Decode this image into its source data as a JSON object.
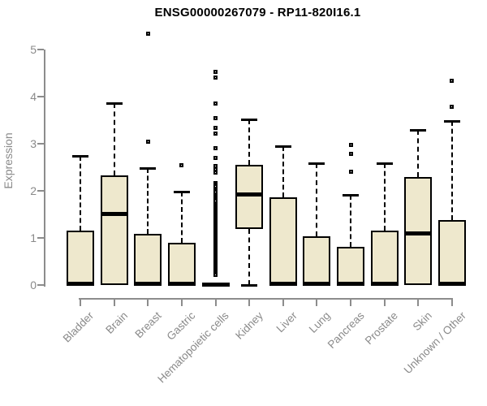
{
  "colors": {
    "background": "#ffffff",
    "box_fill": "#eee8cd",
    "box_border": "#000000",
    "axis": "#8c8c8c",
    "tick_label": "#8a8a8a",
    "title": "#000000"
  },
  "chart_data": {
    "type": "boxplot",
    "title": "ENSG00000267079 - RP11-820I16.1",
    "xlabel": "",
    "ylabel": "Expression",
    "ylim": [
      0,
      5.4
    ],
    "yticks": [
      0,
      1,
      2,
      3,
      4,
      5
    ],
    "grid": false,
    "legend": false,
    "categories": [
      "Bladder",
      "Brain",
      "Breast",
      "Gastric",
      "Hematopoietic cells",
      "Kidney",
      "Liver",
      "Lung",
      "Pancreas",
      "Prostate",
      "Skin",
      "Unknown / Other"
    ],
    "series": [
      {
        "category": "Bladder",
        "whisker_low": 0,
        "q1": 0,
        "median": 0.03,
        "q3": 1.15,
        "whisker_high": 2.74,
        "outliers": []
      },
      {
        "category": "Brain",
        "whisker_low": 0,
        "q1": 0,
        "median": 1.52,
        "q3": 2.32,
        "whisker_high": 3.86,
        "outliers": []
      },
      {
        "category": "Breast",
        "whisker_low": 0,
        "q1": 0,
        "median": 0.03,
        "q3": 1.09,
        "whisker_high": 2.48,
        "outliers": [
          3.05,
          5.33
        ]
      },
      {
        "category": "Gastric",
        "whisker_low": 0,
        "q1": 0,
        "median": 0.03,
        "q3": 0.9,
        "whisker_high": 1.98,
        "outliers": [
          2.55
        ]
      },
      {
        "category": "Hematopoietic cells",
        "whisker_low": 0,
        "q1": 0,
        "median": 0.02,
        "q3": 0.04,
        "whisker_high": 0.04,
        "outliers": [
          4.53,
          4.4,
          3.86,
          3.55,
          3.34,
          3.21,
          2.9,
          2.69,
          2.53,
          2.45,
          2.38,
          2.17,
          2.13,
          2.09,
          2.05,
          2.01,
          1.97,
          1.93,
          1.89,
          1.85,
          1.82,
          1.79,
          1.72,
          1.69,
          1.66,
          1.63,
          1.6,
          1.57,
          1.54,
          1.51,
          1.48,
          1.45,
          1.42,
          1.39,
          1.36,
          1.33,
          1.3,
          1.27,
          1.24,
          1.21,
          1.18,
          1.15,
          1.12,
          1.09,
          1.06,
          1.03,
          1.0,
          0.97,
          0.94,
          0.91,
          0.88,
          0.85,
          0.82,
          0.79,
          0.76,
          0.73,
          0.7,
          0.67,
          0.64,
          0.61,
          0.58,
          0.55,
          0.52,
          0.49,
          0.46,
          0.43,
          0.4,
          0.37,
          0.34,
          0.31,
          0.28,
          0.25,
          0.22
        ]
      },
      {
        "category": "Kidney",
        "whisker_low": 0,
        "q1": 1.19,
        "median": 1.93,
        "q3": 2.55,
        "whisker_high": 3.52,
        "outliers": []
      },
      {
        "category": "Liver",
        "whisker_low": 0,
        "q1": 0,
        "median": 0.03,
        "q3": 1.86,
        "whisker_high": 2.95,
        "outliers": []
      },
      {
        "category": "Lung",
        "whisker_low": 0,
        "q1": 0,
        "median": 0.03,
        "q3": 1.03,
        "whisker_high": 2.59,
        "outliers": []
      },
      {
        "category": "Pancreas",
        "whisker_low": 0,
        "q1": 0,
        "median": 0.03,
        "q3": 0.81,
        "whisker_high": 1.91,
        "outliers": [
          2.41,
          2.79,
          2.98
        ]
      },
      {
        "category": "Prostate",
        "whisker_low": 0,
        "q1": 0,
        "median": 0.03,
        "q3": 1.16,
        "whisker_high": 2.59,
        "outliers": []
      },
      {
        "category": "Skin",
        "whisker_low": 0,
        "q1": 0,
        "median": 1.1,
        "q3": 2.29,
        "whisker_high": 3.29,
        "outliers": []
      },
      {
        "category": "Unknown / Other",
        "whisker_low": 0,
        "q1": 0,
        "median": 0.03,
        "q3": 1.38,
        "whisker_high": 3.48,
        "outliers": [
          3.78,
          4.33
        ]
      }
    ]
  }
}
